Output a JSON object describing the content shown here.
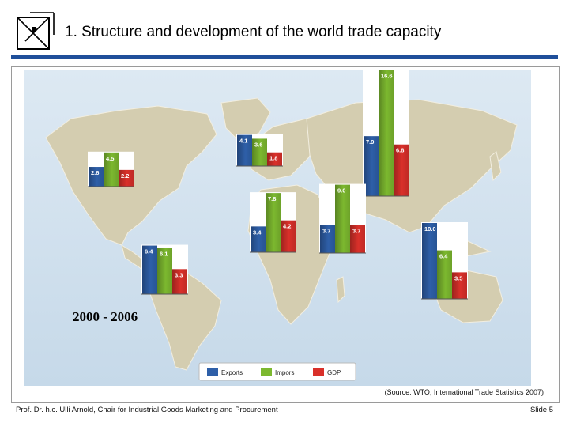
{
  "slide": {
    "title": "1. Structure and development of the world trade capacity",
    "source": "(Source: WTO, International Trade Statistics 2007)",
    "footer": "Prof. Dr. h.c. Ulli Arnold, Chair for Industrial Goods Marketing and Procurement",
    "slide_number": "Slide 5"
  },
  "chart_data": {
    "type": "bar",
    "title": "",
    "annotation": "2000 - 2006",
    "legend_position": "bottom-center",
    "series": [
      {
        "name": "Exports",
        "color": "#2e5fa8"
      },
      {
        "name": "Impors",
        "color": "#7cb82f"
      },
      {
        "name": "GDP",
        "color": "#d9302a"
      }
    ],
    "regions": [
      {
        "region": "North America",
        "values": [
          2.6,
          4.5,
          2.2
        ]
      },
      {
        "region": "Europe",
        "values": [
          4.1,
          3.6,
          1.8
        ]
      },
      {
        "region": "CIS",
        "values": [
          7.9,
          16.6,
          6.8
        ]
      },
      {
        "region": "Middle East",
        "values": [
          3.4,
          7.8,
          4.2
        ]
      },
      {
        "region": "Africa",
        "values": [
          3.7,
          9.0,
          3.7
        ]
      },
      {
        "region": "Asia",
        "values": [
          10.0,
          6.4,
          3.5
        ]
      },
      {
        "region": "South and Central America",
        "values": [
          6.4,
          6.1,
          3.3
        ]
      }
    ],
    "value_labels": [
      [
        "2.6",
        "4.5",
        "2.2"
      ],
      [
        "4.1",
        "3.6",
        "1.8"
      ],
      [
        "7.9",
        "16.6",
        "6.8"
      ],
      [
        "3.4",
        "7.8",
        "4.2"
      ],
      [
        "3.7",
        "9.0",
        "3.7"
      ],
      [
        "10.0",
        "6.4",
        "3.5"
      ],
      [
        "6.4",
        "6.1",
        "3.3"
      ]
    ]
  }
}
